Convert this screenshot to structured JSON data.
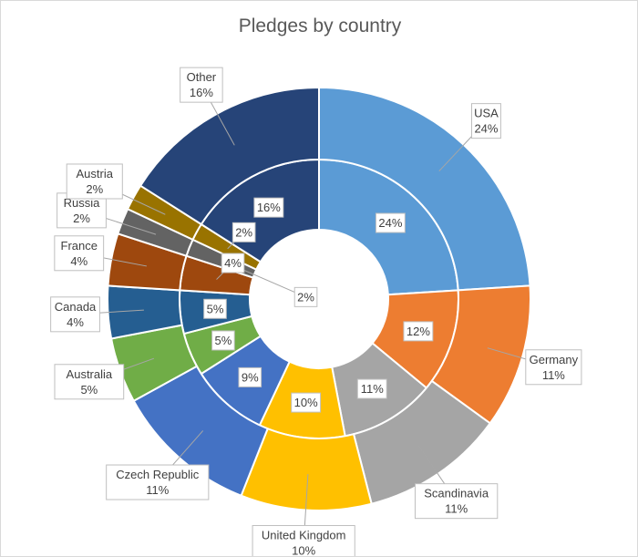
{
  "chart_data": {
    "type": "pie",
    "subtype": "doughnut",
    "title": "Pledges by country",
    "legend": "none",
    "rings": [
      {
        "name": "",
        "shows": "percent",
        "slices": [
          {
            "label": "USA",
            "percent": "24%",
            "value": 24,
            "color": "#5B9BD5"
          },
          {
            "label": "Germany",
            "percent": "12%",
            "value": 12,
            "color": "#ED7D31"
          },
          {
            "label": "Scandinavia",
            "percent": "11%",
            "value": 11,
            "color": "#A5A5A5"
          },
          {
            "label": "United Kingdom",
            "percent": "10%",
            "value": 10,
            "color": "#FFC000"
          },
          {
            "label": "Czech Republic",
            "percent": "9%",
            "value": 9,
            "color": "#4472C4"
          },
          {
            "label": "Australia",
            "percent": "5%",
            "value": 5,
            "color": "#70AD47"
          },
          {
            "label": "Canada",
            "percent": "5%",
            "value": 5,
            "color": "#255E91"
          },
          {
            "label": "France",
            "percent": "4%",
            "value": 4,
            "color": "#9E480E"
          },
          {
            "label": "Russia",
            "percent": "2%",
            "value": 2,
            "color": "#636363"
          },
          {
            "label": "Austria",
            "percent": "2%",
            "value": 2,
            "color": "#997300"
          },
          {
            "label": "Other",
            "percent": "16%",
            "value": 16,
            "color": "#264478"
          }
        ]
      },
      {
        "name": "",
        "shows": "category and percent",
        "slices": [
          {
            "label": "USA",
            "percent": "24%",
            "value": 24,
            "color": "#5B9BD5"
          },
          {
            "label": "Germany",
            "percent": "11%",
            "value": 11,
            "color": "#ED7D31"
          },
          {
            "label": "Scandinavia",
            "percent": "11%",
            "value": 11,
            "color": "#A5A5A5"
          },
          {
            "label": "United Kingdom",
            "percent": "10%",
            "value": 10,
            "color": "#FFC000"
          },
          {
            "label": "Czech Republic",
            "percent": "11%",
            "value": 11,
            "color": "#4472C4"
          },
          {
            "label": "Australia",
            "percent": "5%",
            "value": 5,
            "color": "#70AD47"
          },
          {
            "label": "Canada",
            "percent": "4%",
            "value": 4,
            "color": "#255E91"
          },
          {
            "label": "France",
            "percent": "4%",
            "value": 4,
            "color": "#9E480E"
          },
          {
            "label": "Russia",
            "percent": "2%",
            "value": 2,
            "color": "#636363"
          },
          {
            "label": "Austria",
            "percent": "2%",
            "value": 2,
            "color": "#997300"
          },
          {
            "label": "Other",
            "percent": "16%",
            "value": 16,
            "color": "#264478"
          }
        ]
      }
    ]
  }
}
